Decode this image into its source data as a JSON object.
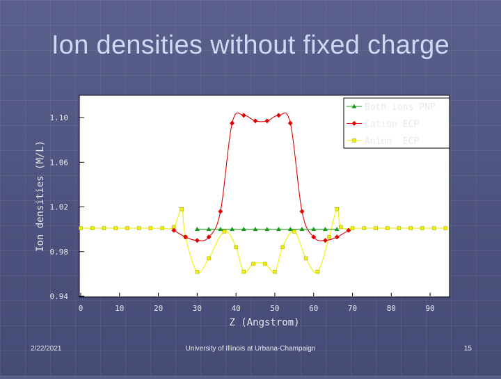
{
  "slide": {
    "title": "Ion densities without fixed charge",
    "date": "2/22/2021",
    "institution": "University of Illinois at Urbana-Champaign",
    "page_number": "15"
  },
  "chart_data": {
    "type": "line",
    "title": "",
    "xlabel": "Z (Angstrom)",
    "ylabel": "Ion densities (M/L)",
    "xlim": [
      0,
      95
    ],
    "ylim": [
      0.94,
      1.12
    ],
    "xticks": [
      0,
      10,
      20,
      30,
      40,
      50,
      60,
      70,
      80,
      90
    ],
    "yticks": [
      0.94,
      0.98,
      1.02,
      1.06,
      1.1
    ],
    "ytick_labels": [
      "0.94",
      "0.98",
      "1.02",
      "1.06",
      "1.10"
    ],
    "legend_position": "top-right",
    "series": [
      {
        "name": "Both ions PNP",
        "marker": "triangle",
        "color": "#1a9a1a",
        "x": [
          30,
          33,
          36,
          39,
          42,
          45,
          48,
          51,
          54,
          57,
          60,
          63,
          66
        ],
        "y": [
          1.0,
          1.0,
          1.0,
          1.0,
          1.0,
          1.0,
          1.0,
          1.0,
          1.0,
          1.0,
          1.0,
          1.0,
          1.0
        ]
      },
      {
        "name": "Cation ECP",
        "marker": "diamond",
        "color": "#e00000",
        "x": [
          24,
          27,
          30,
          33,
          36,
          39,
          42,
          45,
          48,
          51,
          54,
          57,
          60,
          63,
          66,
          69
        ],
        "y": [
          0.999,
          0.993,
          0.99,
          0.993,
          1.016,
          1.095,
          1.102,
          1.097,
          1.097,
          1.102,
          1.095,
          1.016,
          0.993,
          0.99,
          0.993,
          0.999
        ]
      },
      {
        "name": "Anion  ECP",
        "marker": "square",
        "color": "#f0f000",
        "x": [
          0,
          3,
          6,
          9,
          12,
          15,
          18,
          21,
          24,
          26,
          27,
          30,
          33,
          37,
          40,
          42,
          44.5,
          47.5,
          50,
          52,
          55,
          58,
          61,
          64,
          66,
          67,
          70,
          73,
          76,
          79,
          82,
          85,
          88,
          91,
          94
        ],
        "y": [
          1.001,
          1.001,
          1.001,
          1.001,
          1.001,
          1.001,
          1.001,
          1.001,
          1.002,
          1.018,
          0.993,
          0.962,
          0.974,
          0.998,
          0.984,
          0.962,
          0.969,
          0.969,
          0.962,
          0.984,
          0.998,
          0.974,
          0.962,
          0.993,
          1.018,
          1.002,
          1.001,
          1.001,
          1.001,
          1.001,
          1.001,
          1.001,
          1.001,
          1.001,
          1.001
        ]
      }
    ]
  }
}
